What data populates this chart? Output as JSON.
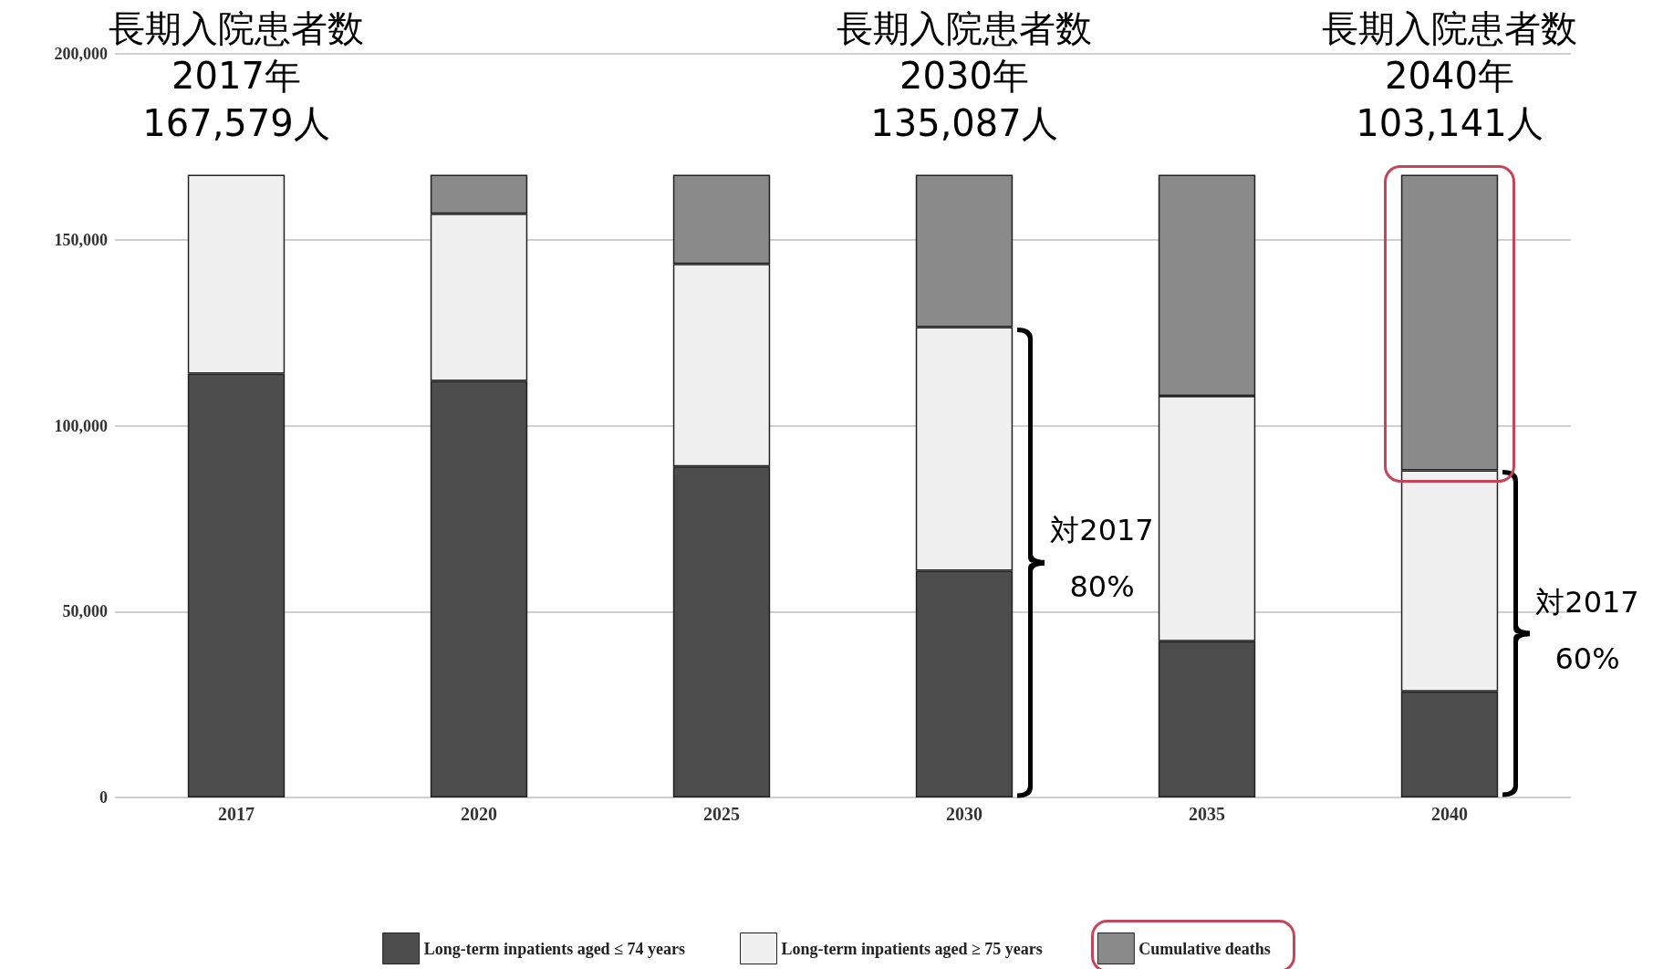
{
  "chart_data": {
    "type": "bar",
    "stacked": true,
    "categories": [
      "2017",
      "2020",
      "2025",
      "2030",
      "2035",
      "2040"
    ],
    "series": [
      {
        "name": "Long-term inpatients aged ≤ 74 years",
        "color": "#4d4d4d",
        "values": [
          114000,
          112000,
          89000,
          61000,
          42000,
          28500
        ]
      },
      {
        "name": "Long-term inpatients aged ≥ 75 years",
        "color": "#f0f0f0",
        "values": [
          53500,
          45000,
          54500,
          65500,
          66000,
          59500
        ]
      },
      {
        "name": "Cumulative deaths",
        "color": "#8a8a8a",
        "values": [
          null,
          10500,
          24000,
          41000,
          59500,
          79500
        ]
      }
    ],
    "ylim": [
      0,
      200000
    ],
    "yticks": [
      0,
      {
        "value": 50000,
        "label": "50,000"
      },
      {
        "value": 100000,
        "label": "100,000"
      },
      {
        "value": 150000,
        "label": "150,000"
      },
      {
        "value": 200000,
        "label": "200,000"
      }
    ],
    "grid": "y",
    "legend": "bottom",
    "annotations": [
      {
        "text": "長期入院患者数\n2017年\n167,579人",
        "x": "2017",
        "y": 167579
      },
      {
        "text": "長期入院患者数\n2030年\n135,087人",
        "x": "2030",
        "y": 167579
      },
      {
        "text": "長期入院患者数\n2040年\n103,141人",
        "x": "2040",
        "y": 167579
      },
      "対2017\n80%",
      "対2017\n60%"
    ]
  }
}
